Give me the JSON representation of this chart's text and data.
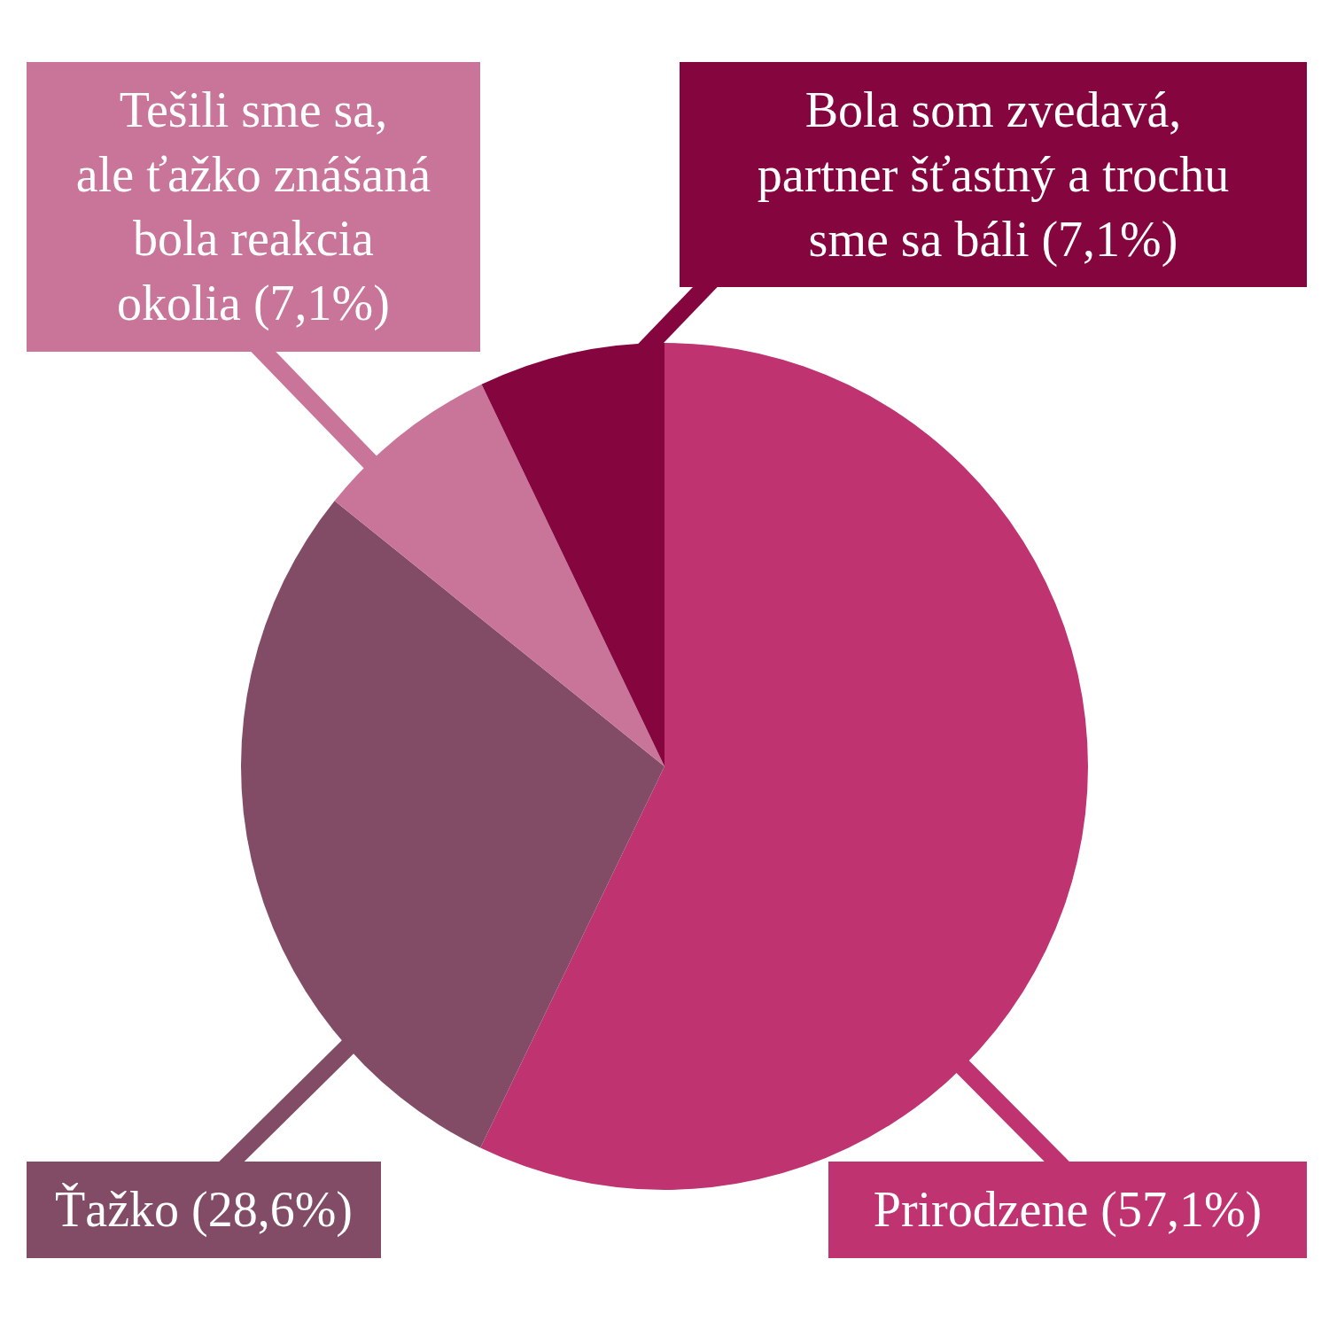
{
  "chart_data": {
    "type": "pie",
    "categories": [
      "Prirodzene (57,1%)",
      "Ťažko (28,6%)",
      "Tešili sme sa,\nale ťažko znášaná\nbola reakcia\nokolia (7,1%)",
      "Bola som zvedavá,\npartner šťastný a trochu\nsme sa báli (7,1%)"
    ],
    "values": [
      57.1,
      28.6,
      7.1,
      7.1
    ],
    "colors": [
      "#bf3370",
      "#834c66",
      "#c97499",
      "#85063f"
    ]
  }
}
